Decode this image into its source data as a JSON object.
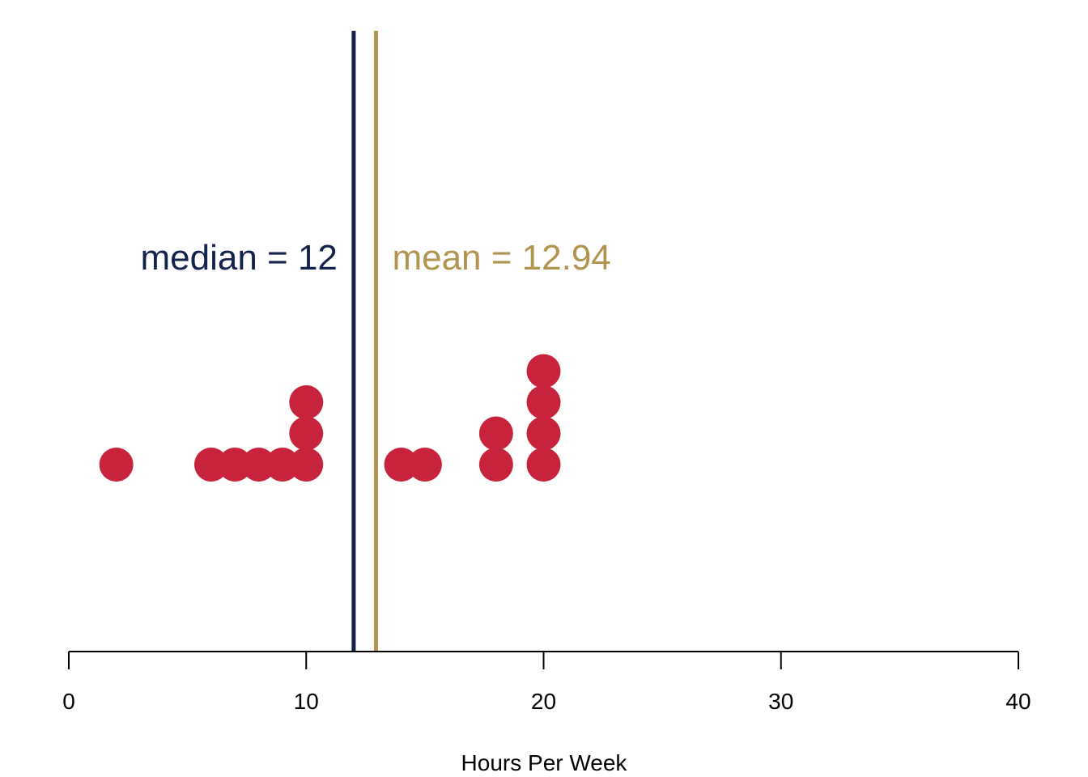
{
  "chart_data": {
    "type": "dotplot",
    "xlabel": "Hours Per Week",
    "xlim": [
      0,
      40
    ],
    "x_ticks": [
      0,
      10,
      20,
      30,
      40
    ],
    "x_tick_labels": [
      "0",
      "10",
      "20",
      "30",
      "40"
    ],
    "points": [
      {
        "x": 2,
        "count": 1
      },
      {
        "x": 6,
        "count": 1
      },
      {
        "x": 7,
        "count": 1
      },
      {
        "x": 8,
        "count": 1
      },
      {
        "x": 9,
        "count": 1
      },
      {
        "x": 10,
        "count": 3
      },
      {
        "x": 14,
        "count": 1
      },
      {
        "x": 15,
        "count": 1
      },
      {
        "x": 18,
        "count": 2
      },
      {
        "x": 20,
        "count": 4
      }
    ],
    "reference_lines": [
      {
        "name": "median",
        "value": 12,
        "label": "median = 12",
        "color": "#14234b",
        "label_side": "left"
      },
      {
        "name": "mean",
        "value": 12.94,
        "label": "mean = 12.94",
        "color": "#b0944f",
        "label_side": "right"
      }
    ],
    "point_color": "#c8233c",
    "grid": false,
    "legend": "none"
  }
}
